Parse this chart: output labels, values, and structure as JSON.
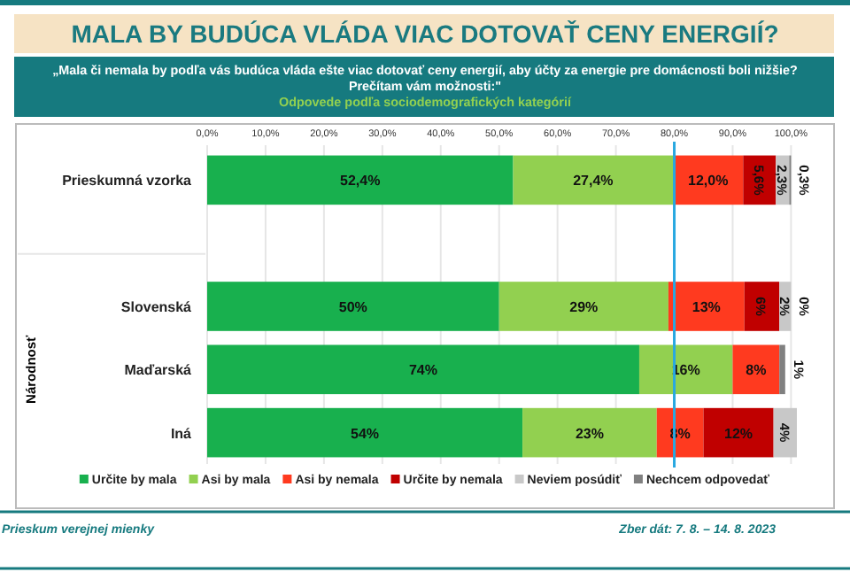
{
  "chart_data": {
    "type": "bar",
    "orientation": "horizontal",
    "stacked": true,
    "title": "MALA BY BUDÚCA VLÁDA VIAC DOTOVAŤ CENY ENERGIÍ?",
    "subtitle": "„Mala či nemala by podľa vás budúca vláda ešte viac dotovať ceny energií, aby účty za energie pre domácnosti boli nižšie?\nPrečítam vám možnosti:\"",
    "annotations": [
      "Odpovede podľa sociodemografických kategórií",
      "Národnosť",
      "Prieskum verejnej mienky",
      "Zber dát: 7. 8. – 14. 8. 2023"
    ],
    "categories": [
      "Prieskumná vzorka",
      null,
      "Slovenská",
      "Maďarská",
      "Iná"
    ],
    "series": [
      {
        "name": "Určite by mala",
        "color": "#18b04e",
        "values": [
          52.4,
          null,
          50,
          74,
          54
        ],
        "value_labels": [
          "52,4%",
          null,
          "50%",
          "74%",
          "54%"
        ]
      },
      {
        "name": "Asi by mala",
        "color": "#92d050",
        "values": [
          27.4,
          null,
          29,
          16,
          23
        ],
        "value_labels": [
          "27,4%",
          null,
          "29%",
          "16%",
          "23%"
        ]
      },
      {
        "name": "Asi by nemala",
        "color": "#ff3a1f",
        "values": [
          12.0,
          null,
          13,
          8,
          8
        ],
        "value_labels": [
          "12,0%",
          null,
          "13%",
          "8%",
          "8%"
        ]
      },
      {
        "name": "Určite by nemala",
        "color": "#c00000",
        "values": [
          5.6,
          null,
          6,
          null,
          12
        ],
        "value_labels": [
          "5,6%",
          null,
          "6%",
          null,
          "12%"
        ]
      },
      {
        "name": "Neviem posúdiť",
        "color": "#c8c8c8",
        "values": [
          2.3,
          null,
          2,
          null,
          4
        ],
        "value_labels": [
          "2,3%",
          null,
          "2%",
          null,
          "4%"
        ]
      },
      {
        "name": "Nechcem odpovedať",
        "color": "#808080",
        "values": [
          0.3,
          null,
          0,
          1,
          null
        ],
        "value_labels": [
          "0,3%",
          null,
          "0%",
          "1%",
          null
        ]
      }
    ],
    "xlim": [
      0,
      101
    ],
    "xticks": [
      {
        "value": 0,
        "label": "0,0%"
      },
      {
        "value": 10,
        "label": "10,0%"
      },
      {
        "value": 20,
        "label": "20,0%"
      },
      {
        "value": 30,
        "label": "30,0%"
      },
      {
        "value": 40,
        "label": "40,0%"
      },
      {
        "value": 50,
        "label": "50,0%"
      },
      {
        "value": 60,
        "label": "60,0%"
      },
      {
        "value": 70,
        "label": "70,0%"
      },
      {
        "value": 80,
        "label": "80,0%"
      },
      {
        "value": 90,
        "label": "90,0%"
      },
      {
        "value": 100,
        "label": "100,0%"
      }
    ],
    "ref_lines": [
      {
        "axis": "x",
        "value": 80,
        "color": "#29a8e0"
      }
    ],
    "grid": "x",
    "legend": "bottom"
  }
}
